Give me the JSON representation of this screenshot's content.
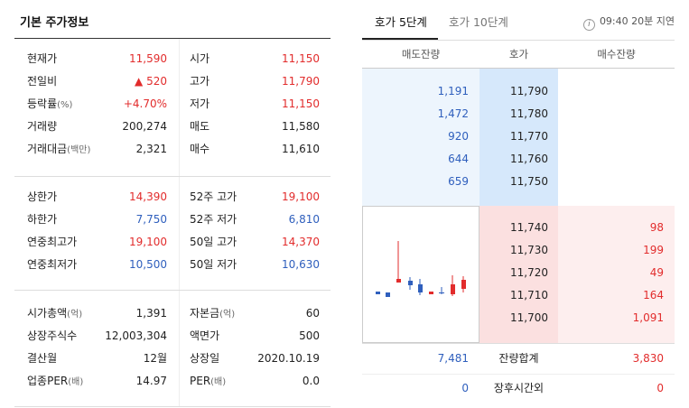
{
  "left": {
    "title": "기본 주가정보",
    "section1": [
      {
        "l1": "현재가",
        "v1": "11,590",
        "c1": "red",
        "l2": "시가",
        "v2": "11,150",
        "c2": "red"
      },
      {
        "l1": "전일비",
        "v1": "▲ 520",
        "c1": "red",
        "l2": "고가",
        "v2": "11,790",
        "c2": "red"
      },
      {
        "l1": "등락률",
        "u1": "(%)",
        "v1": "+4.70%",
        "c1": "red",
        "l2": "저가",
        "v2": "11,150",
        "c2": "red"
      },
      {
        "l1": "거래량",
        "v1": "200,274",
        "c1": "dark",
        "l2": "매도",
        "v2": "11,580",
        "c2": "dark"
      },
      {
        "l1": "거래대금",
        "u1": "(백만)",
        "v1": "2,321",
        "c1": "dark",
        "l2": "매수",
        "v2": "11,610",
        "c2": "dark"
      }
    ],
    "section2": [
      {
        "l1": "상한가",
        "v1": "14,390",
        "c1": "red",
        "l2": "52주 고가",
        "v2": "19,100",
        "c2": "red"
      },
      {
        "l1": "하한가",
        "v1": "7,750",
        "c1": "blue",
        "l2": "52주 저가",
        "v2": "6,810",
        "c2": "blue"
      },
      {
        "l1": "연중최고가",
        "v1": "19,100",
        "c1": "red",
        "l2": "50일 고가",
        "v2": "14,370",
        "c2": "red"
      },
      {
        "l1": "연중최저가",
        "v1": "10,500",
        "c1": "blue",
        "l2": "50일 저가",
        "v2": "10,630",
        "c2": "blue"
      }
    ],
    "section3": [
      {
        "l1": "시가총액",
        "u1": "(억)",
        "v1": "1,391",
        "c1": "dark",
        "l2": "자본금",
        "u2": "(억)",
        "v2": "60",
        "c2": "dark"
      },
      {
        "l1": "상장주식수",
        "v1": "12,003,304",
        "c1": "dark",
        "l2": "액면가",
        "v2": "500",
        "c2": "dark"
      },
      {
        "l1": "결산월",
        "v1": "12월",
        "c1": "dark",
        "l2": "상장일",
        "v2": "2020.10.19",
        "c2": "dark"
      },
      {
        "l1": "업종PER",
        "u1": "(배)",
        "v1": "14.97",
        "c1": "dark",
        "l2": "PER",
        "u2": "(배)",
        "v2": "0.0",
        "c2": "dark"
      }
    ]
  },
  "right": {
    "tab_active": "호가 5단계",
    "tab_inactive": "호가 10단계",
    "delay_icon": "info-icon",
    "delay_text": "09:40 20분 지연",
    "headers": [
      "매도잔량",
      "호가",
      "매수잔량"
    ],
    "asks": [
      {
        "qty": "1,191",
        "price": "11,790"
      },
      {
        "qty": "1,472",
        "price": "11,780"
      },
      {
        "qty": "920",
        "price": "11,770"
      },
      {
        "qty": "644",
        "price": "11,760"
      },
      {
        "qty": "659",
        "price": "11,750"
      }
    ],
    "bids": [
      {
        "price": "11,740",
        "qty": "98"
      },
      {
        "price": "11,730",
        "qty": "199"
      },
      {
        "price": "11,720",
        "qty": "49"
      },
      {
        "price": "11,710",
        "qty": "164"
      },
      {
        "price": "11,700",
        "qty": "1,091"
      }
    ],
    "total_ask": "7,481",
    "total_label": "잔량합계",
    "total_bid": "3,830",
    "after_ask": "0",
    "after_label": "장후시간외",
    "after_bid": "0"
  },
  "colors": {
    "red": "#e22c2c",
    "blue": "#2f5fbd",
    "ask_bg": "#edf5fd",
    "ask_price_bg": "#d6e8fb",
    "bid_price_bg": "#fbe0e0",
    "bid_bg": "#fdeeee"
  }
}
